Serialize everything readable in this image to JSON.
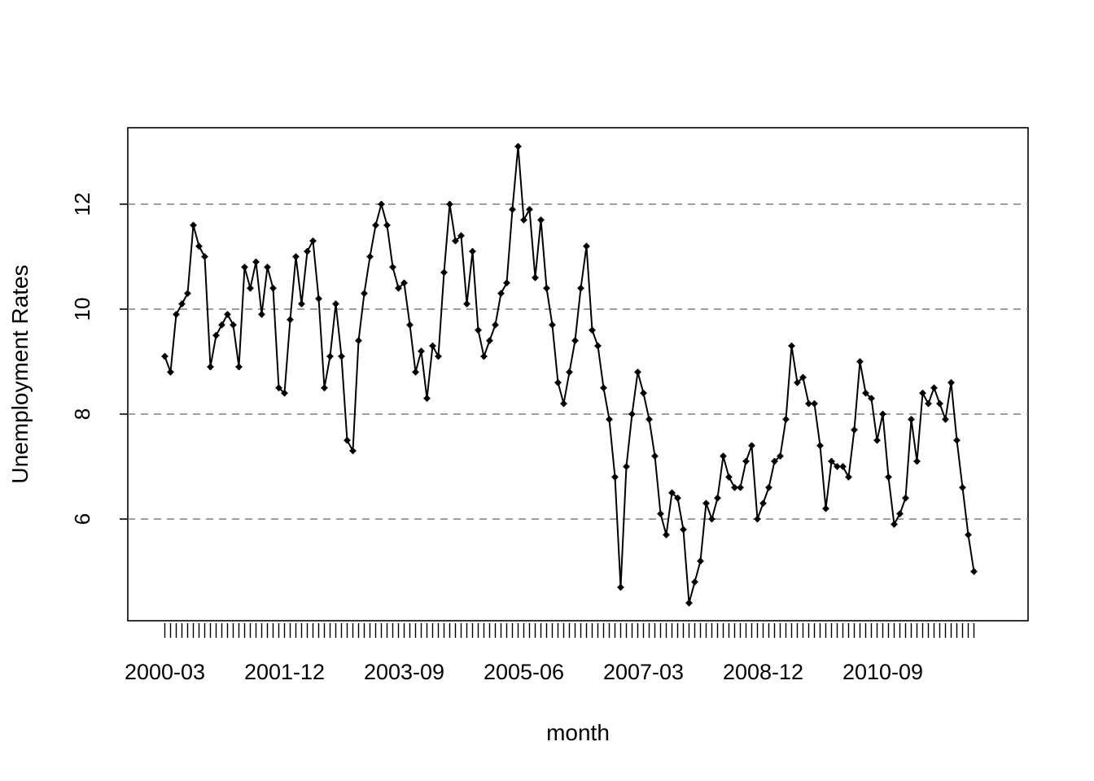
{
  "chart_data": {
    "type": "line",
    "title": "",
    "xlabel": "month",
    "ylabel": "Unemployment Rates",
    "x_tick_labels": [
      "2000-03",
      "2001-12",
      "2003-09",
      "2005-06",
      "2007-03",
      "2008-12",
      "2010-09"
    ],
    "x_tick_label_months": [
      "2000-03",
      "2001-12",
      "2003-09",
      "2005-06",
      "2007-03",
      "2008-12",
      "2010-09"
    ],
    "y_ticks": [
      6,
      8,
      10,
      12
    ],
    "ylim": [
      4.3,
      13.2
    ],
    "grid": "horizontal dashed at y ticks",
    "legend": "none",
    "line_color": "#000000",
    "grid_color": "#7f7f7f",
    "series": [
      {
        "start_month": "2000-03",
        "values": [
          9.1,
          8.8,
          9.9,
          10.1,
          10.3,
          11.6,
          11.2,
          11.0,
          8.9,
          9.5,
          9.7,
          9.9,
          9.7,
          8.9,
          10.8,
          10.4,
          10.9,
          9.9,
          10.8,
          10.4,
          8.5,
          8.4,
          9.8,
          11.0,
          10.1,
          11.1,
          11.3,
          10.2,
          8.5,
          9.1,
          10.1,
          9.1,
          7.5,
          7.3,
          9.4,
          10.3,
          11.0,
          11.6,
          12.0,
          11.6,
          10.8,
          10.4,
          10.5,
          9.7,
          8.8,
          9.2,
          8.3,
          9.3,
          9.1,
          10.7,
          12.0,
          11.3,
          11.4,
          10.1,
          11.1,
          9.6,
          9.1,
          9.4,
          9.7,
          10.3,
          10.5,
          11.9,
          13.1,
          11.7,
          11.9,
          10.6,
          11.7,
          10.4,
          9.7,
          8.6,
          8.2,
          8.8,
          9.4,
          10.4,
          11.2,
          9.6,
          9.3,
          8.5,
          7.9,
          6.8,
          4.7,
          7.0,
          8.0,
          8.8,
          8.4,
          7.9,
          7.2,
          6.1,
          5.7,
          6.5,
          6.4,
          5.8,
          4.4,
          4.8,
          5.2,
          6.3,
          6.0,
          6.4,
          7.2,
          6.8,
          6.6,
          6.6,
          7.1,
          7.4,
          6.0,
          6.3,
          6.6,
          7.1,
          7.2,
          7.9,
          9.3,
          8.6,
          8.7,
          8.2,
          8.2,
          7.4,
          6.2,
          7.1,
          7.0,
          7.0,
          6.8,
          7.7,
          9.0,
          8.4,
          8.3,
          7.5,
          8.0,
          6.8,
          5.9,
          6.1,
          6.4,
          7.9,
          7.1,
          8.4,
          8.2,
          8.5,
          8.2,
          7.9,
          8.6,
          7.5,
          6.6,
          5.7,
          5.0
        ]
      }
    ]
  }
}
